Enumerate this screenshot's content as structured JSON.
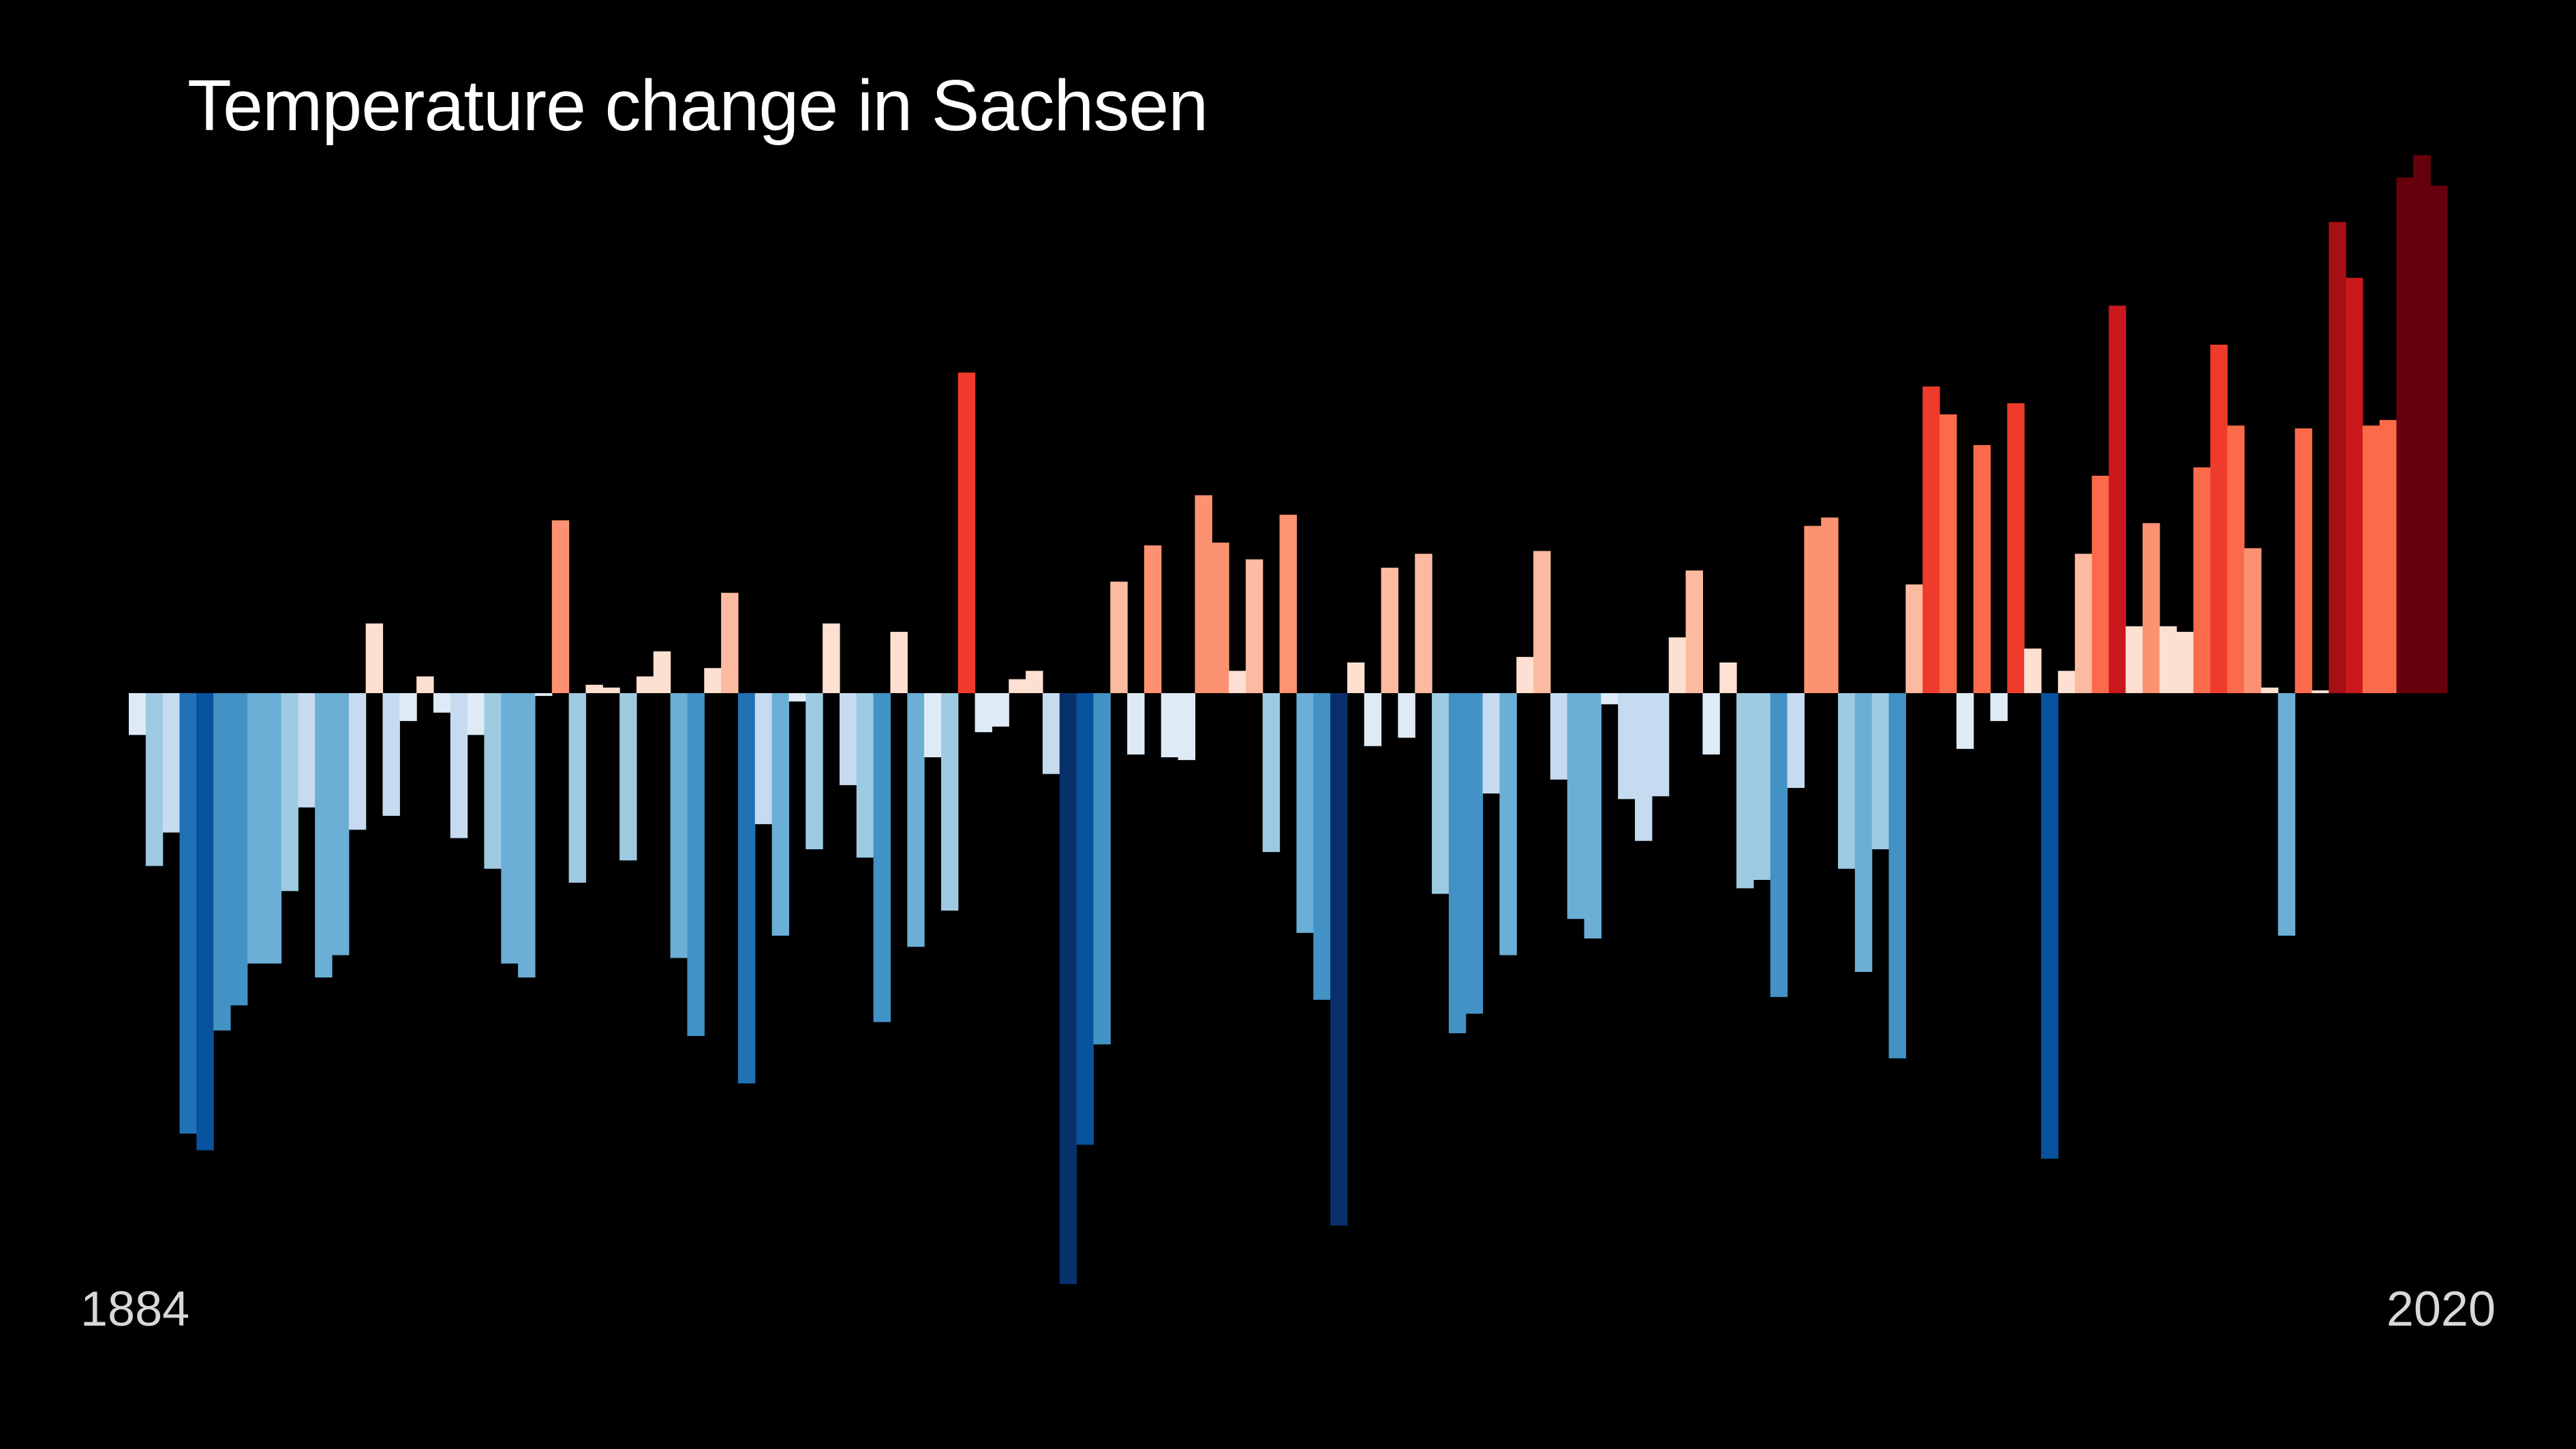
{
  "chart_data": {
    "type": "bar",
    "title": "Temperature change in Sachsen",
    "start_year": "1884",
    "end_year": "2020",
    "xlabel": "",
    "ylabel": "",
    "ylim": [
      -2.7,
      2.4
    ],
    "grid": false,
    "legend": "none",
    "values": [
      -0.15,
      -0.62,
      -0.5,
      -1.58,
      -1.64,
      -1.21,
      -1.12,
      -0.97,
      -0.97,
      -0.71,
      -0.41,
      -1.02,
      -0.94,
      -0.49,
      0.25,
      -0.44,
      -0.1,
      0.06,
      -0.07,
      -0.52,
      -0.15,
      -0.63,
      -0.97,
      -1.02,
      -0.01,
      0.62,
      -0.68,
      0.03,
      0.02,
      -0.6,
      0.06,
      0.15,
      -0.95,
      -1.23,
      0.09,
      0.36,
      -1.4,
      -0.47,
      -0.87,
      -0.03,
      -0.56,
      0.25,
      -0.33,
      -0.59,
      -1.18,
      0.22,
      -0.91,
      -0.23,
      -0.78,
      1.15,
      -0.14,
      -0.12,
      0.05,
      0.08,
      -0.29,
      -2.12,
      -1.62,
      -1.26,
      0.4,
      -0.22,
      0.53,
      -0.23,
      -0.24,
      0.71,
      0.54,
      0.08,
      0.48,
      -0.57,
      0.64,
      -0.86,
      -1.1,
      -1.91,
      0.11,
      -0.19,
      0.45,
      -0.16,
      0.5,
      -0.72,
      -1.22,
      -1.15,
      -0.36,
      -0.94,
      0.13,
      0.51,
      -0.31,
      -0.81,
      -0.88,
      -0.04,
      -0.38,
      -0.53,
      -0.37,
      0.2,
      0.44,
      -0.22,
      0.11,
      -0.7,
      -0.67,
      -1.09,
      -0.34,
      0.6,
      0.63,
      -0.63,
      -1.0,
      -0.56,
      -1.31,
      0.39,
      1.1,
      1.0,
      -0.2,
      0.89,
      -0.1,
      1.04,
      0.16,
      -1.67,
      0.08,
      0.5,
      0.78,
      1.39,
      0.24,
      0.61,
      0.24,
      0.22,
      0.81,
      1.25,
      0.96,
      0.52,
      0.02,
      -0.87,
      0.95,
      0.01,
      1.69,
      1.49,
      0.96,
      0.98,
      1.85,
      1.93,
      1.82
    ]
  }
}
